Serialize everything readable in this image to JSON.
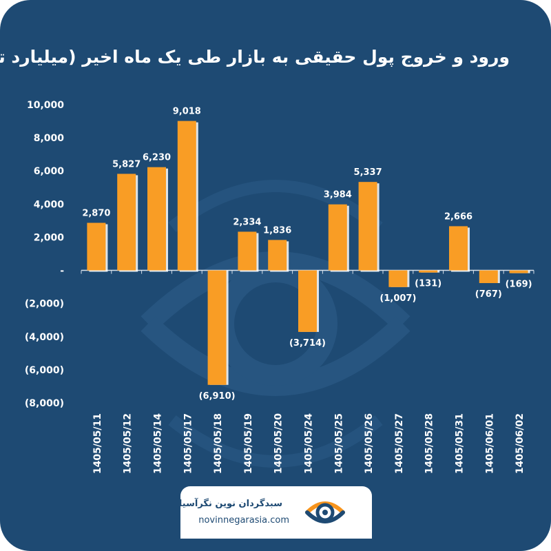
{
  "title": "ورود و خروج پول حقیقی به بازار طی یک ماه اخیر (میلیارد تومان)",
  "footer": {
    "brand_name": "سبدگردان نوین نگرآسیا",
    "url": "novinnegarasia.com",
    "logo_icon": "eye-logo-icon"
  },
  "colors": {
    "background": "#1e4a73",
    "bar": "#f99d25",
    "text": "#ffffff",
    "logo_orange": "#f7941d"
  },
  "chart_data": {
    "type": "bar",
    "title": "ورود و خروج پول حقیقی به بازار طی یک ماه اخیر (میلیارد تومان)",
    "categories": [
      "1405/05/11",
      "1405/05/12",
      "1405/05/14",
      "1405/05/17",
      "1405/05/18",
      "1405/05/19",
      "1405/05/20",
      "1405/05/24",
      "1405/05/25",
      "1405/05/26",
      "1405/05/27",
      "1405/05/28",
      "1405/05/31",
      "1405/06/01",
      "1405/06/02"
    ],
    "values": [
      2870,
      5827,
      6230,
      9018,
      -6910,
      2334,
      1836,
      -3714,
      3984,
      5337,
      -1007,
      -131,
      2666,
      -767,
      -169
    ],
    "value_labels": [
      "2,870",
      "5,827",
      "6,230",
      "9,018",
      "(6,910)",
      "2,334",
      "1,836",
      "(3,714)",
      "3,984",
      "5,337",
      "(1,007)",
      "(131)",
      "2,666",
      "(767)",
      "(169)"
    ],
    "ylim": [
      -8000,
      10000
    ],
    "yticks": [
      10000,
      8000,
      6000,
      4000,
      2000,
      0,
      -2000,
      -4000,
      -6000,
      -8000
    ],
    "ytick_labels": [
      "10,000",
      "8,000",
      "6,000",
      "4,000",
      "2,000",
      "-",
      "(2,000)",
      "(4,000)",
      "(6,000)",
      "(8,000)"
    ],
    "grid": false,
    "legend": "none"
  }
}
